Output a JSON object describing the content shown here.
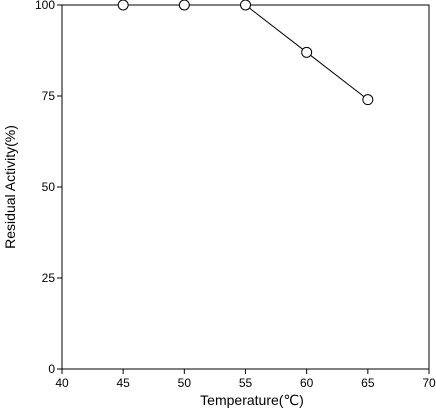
{
  "chart_data": {
    "type": "line",
    "title": "",
    "xlabel": "Temperature(℃)",
    "ylabel": "Residual Activity(%)",
    "xlim": [
      40,
      70
    ],
    "ylim": [
      0,
      100
    ],
    "xticks": [
      40,
      45,
      50,
      55,
      60,
      65,
      70
    ],
    "yticks": [
      0,
      25,
      50,
      75,
      100
    ],
    "grid": false,
    "legend": "none",
    "marker": "open-circle",
    "series": [
      {
        "x": [
          45,
          50,
          55,
          60,
          65
        ],
        "y": [
          100,
          100,
          100,
          87,
          74
        ]
      }
    ]
  }
}
